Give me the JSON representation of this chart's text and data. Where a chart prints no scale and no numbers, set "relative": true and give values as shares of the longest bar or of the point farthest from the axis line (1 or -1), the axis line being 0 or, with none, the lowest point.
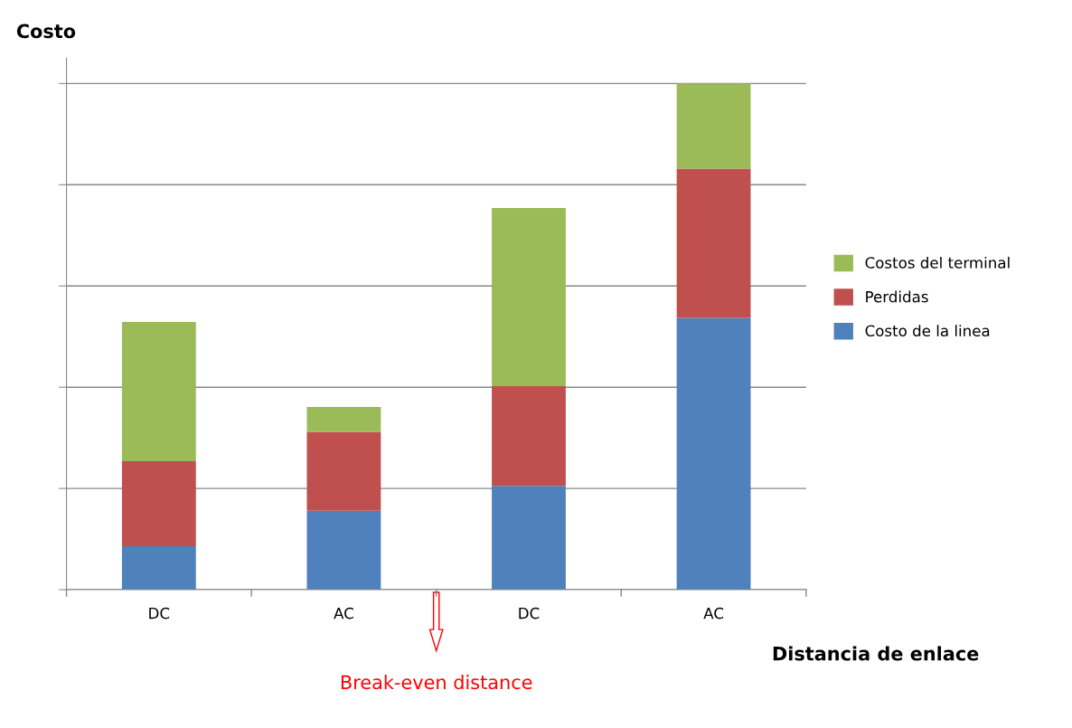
{
  "chart_data": {
    "type": "bar",
    "stacked": true,
    "relative": true,
    "ylabel": "Costo",
    "xlabel": "Distancia de enlace",
    "categories": [
      "DC",
      "AC",
      "DC",
      "AC"
    ],
    "series": [
      {
        "name": "Costo de la linea",
        "color": "#4f81bd",
        "values": [
          0.086,
          0.156,
          0.205,
          0.537
        ]
      },
      {
        "name": "Perdidas",
        "color": "#c0504d",
        "values": [
          0.168,
          0.156,
          0.197,
          0.295
        ]
      },
      {
        "name": "Costos del terminal",
        "color": "#9bbb59",
        "values": [
          0.275,
          0.049,
          0.352,
          0.168
        ]
      }
    ],
    "annotations": [
      "Break-even distance"
    ],
    "grid": "y",
    "legend": "right"
  }
}
